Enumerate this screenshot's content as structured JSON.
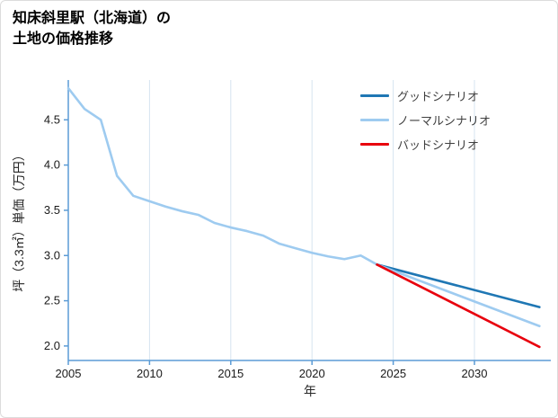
{
  "chart_data": {
    "type": "line",
    "title": "知床斜里駅（北海道）の土地の価格推移",
    "title_lines": [
      "知床斜里駅（北海道）の",
      "土地の価格推移"
    ],
    "xlabel": "年",
    "ylabel": "坪（3.3㎡）単価（万円）",
    "x_domain": [
      2005,
      2034.7
    ],
    "y_domain": [
      1.84,
      4.94
    ],
    "x_ticks": [
      2005,
      2010,
      2015,
      2020,
      2025,
      2030
    ],
    "x_tick_labels": [
      "2005",
      "2010",
      "2015",
      "2020",
      "2025",
      "2030"
    ],
    "y_ticks": [
      2.0,
      2.5,
      3.0,
      3.5,
      4.0,
      4.5
    ],
    "y_tick_labels": [
      "2.0",
      "2.5",
      "3.0",
      "3.5",
      "4.0",
      "4.5"
    ],
    "grid": "vertical gridlines at x ticks",
    "legend_position": "upper right",
    "colors": {
      "axis": "#5b9bd5",
      "grid": "#d6e4f0",
      "tick_text": "#1a1a1a",
      "good": "#1f77b4",
      "normal": "#9ecbf0",
      "bad": "#e8000d",
      "historical": "#9ecbf0"
    },
    "series": [
      {
        "id": "historical",
        "color": "#9ecbf0",
        "width": 2.6,
        "x": [
          2005,
          2006,
          2007,
          2008,
          2009,
          2010,
          2011,
          2012,
          2013,
          2014,
          2015,
          2016,
          2017,
          2018,
          2019,
          2020,
          2021,
          2022,
          2023,
          2024
        ],
        "values": [
          4.85,
          4.62,
          4.5,
          3.88,
          3.66,
          3.6,
          3.54,
          3.49,
          3.45,
          3.36,
          3.31,
          3.27,
          3.22,
          3.13,
          3.08,
          3.03,
          2.99,
          2.96,
          3.0,
          2.9
        ]
      },
      {
        "id": "good",
        "name": "グッドシナリオ",
        "color": "#1f77b4",
        "width": 2.6,
        "x": [
          2024,
          2034
        ],
        "values": [
          2.9,
          2.43
        ]
      },
      {
        "id": "normal",
        "name": "ノーマルシナリオ",
        "color": "#9ecbf0",
        "width": 2.6,
        "x": [
          2024,
          2034
        ],
        "values": [
          2.9,
          2.22
        ]
      },
      {
        "id": "bad",
        "name": "バッドシナリオ",
        "color": "#e8000d",
        "width": 2.6,
        "x": [
          2024,
          2034
        ],
        "values": [
          2.9,
          1.99
        ]
      }
    ],
    "legend": [
      {
        "id": "good",
        "label": "グッドシナリオ",
        "color": "#1f77b4"
      },
      {
        "id": "normal",
        "label": "ノーマルシナリオ",
        "color": "#9ecbf0"
      },
      {
        "id": "bad",
        "label": "バッドシナリオ",
        "color": "#e8000d"
      }
    ]
  }
}
